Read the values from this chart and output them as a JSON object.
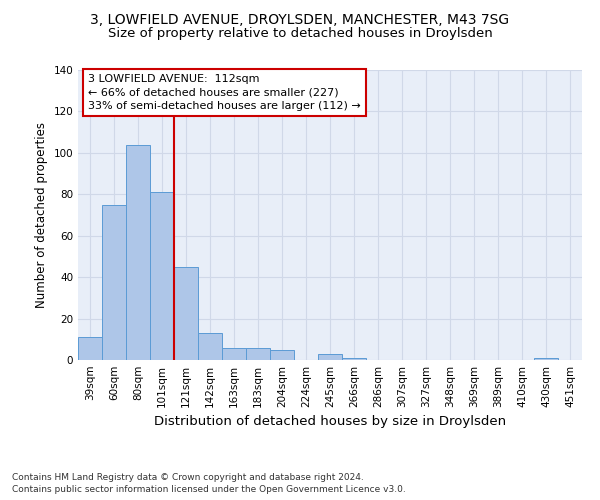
{
  "title": "3, LOWFIELD AVENUE, DROYLSDEN, MANCHESTER, M43 7SG",
  "subtitle": "Size of property relative to detached houses in Droylsden",
  "xlabel": "Distribution of detached houses by size in Droylsden",
  "ylabel": "Number of detached properties",
  "categories": [
    "39sqm",
    "60sqm",
    "80sqm",
    "101sqm",
    "121sqm",
    "142sqm",
    "163sqm",
    "183sqm",
    "204sqm",
    "224sqm",
    "245sqm",
    "266sqm",
    "286sqm",
    "307sqm",
    "327sqm",
    "348sqm",
    "369sqm",
    "389sqm",
    "410sqm",
    "430sqm",
    "451sqm"
  ],
  "values": [
    11,
    75,
    104,
    81,
    45,
    13,
    6,
    6,
    5,
    0,
    3,
    1,
    0,
    0,
    0,
    0,
    0,
    0,
    0,
    1,
    0
  ],
  "bar_color": "#aec6e8",
  "bar_edge_color": "#5b9bd5",
  "vline_x": 3.5,
  "vline_color": "#cc0000",
  "annotation_line1": "3 LOWFIELD AVENUE:  112sqm",
  "annotation_line2": "← 66% of detached houses are smaller (227)",
  "annotation_line3": "33% of semi-detached houses are larger (112) →",
  "annotation_box_color": "#cc0000",
  "ylim": [
    0,
    140
  ],
  "yticks": [
    0,
    20,
    40,
    60,
    80,
    100,
    120,
    140
  ],
  "grid_color": "#d0d8e8",
  "bg_color": "#e8eef8",
  "footer1": "Contains HM Land Registry data © Crown copyright and database right 2024.",
  "footer2": "Contains public sector information licensed under the Open Government Licence v3.0.",
  "title_fontsize": 10,
  "subtitle_fontsize": 9.5,
  "xlabel_fontsize": 9.5,
  "ylabel_fontsize": 8.5,
  "tick_fontsize": 7.5,
  "annotation_fontsize": 8,
  "footer_fontsize": 6.5
}
